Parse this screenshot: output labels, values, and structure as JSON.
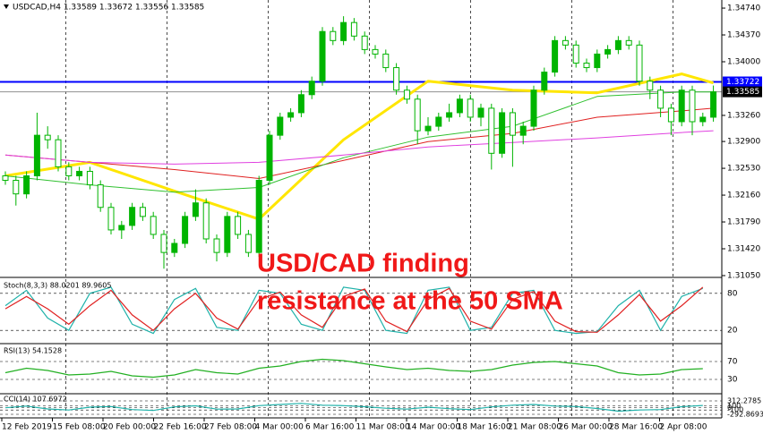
{
  "chart_data": {
    "type": "candlestick",
    "title": "USDCAD,H4 1.33589 1.33672 1.33556 1.33585",
    "annotations": [
      "USD/CAD finding",
      "resistance at the 50 SMA"
    ],
    "up_color": "#00b400",
    "down_color": "#00b400",
    "ylim": [
      1.31025,
      1.34827
    ],
    "yticks": [
      {
        "value": 1.3474,
        "label": "1.34740"
      },
      {
        "value": 1.3437,
        "label": "1.34370"
      },
      {
        "value": 1.34,
        "label": "1.34000"
      },
      {
        "value": 1.3326,
        "label": "1.33260"
      },
      {
        "value": 1.329,
        "label": "1.32900"
      },
      {
        "value": 1.3253,
        "label": "1.32530"
      },
      {
        "value": 1.3216,
        "label": "1.32160"
      },
      {
        "value": 1.3179,
        "label": "1.31790"
      },
      {
        "value": 1.3142,
        "label": "1.31420"
      },
      {
        "value": 1.3105,
        "label": "1.31050"
      }
    ],
    "xticks": [
      "12 Feb 2019",
      "15 Feb 08:00",
      "20 Feb 00:00",
      "22 Feb 16:00",
      "27 Feb 08:00",
      "4 Mar 00:00",
      "6 Mar 16:00",
      "11 Mar 08:00",
      "14 Mar 00:00",
      "18 Mar 16:00",
      "21 Mar 08:00",
      "26 Mar 00:00",
      "28 Mar 16:00",
      "2 Apr 08:00"
    ],
    "hlines": [
      {
        "value": 1.33722,
        "label": "1.33722",
        "color": "#0000ff"
      },
      {
        "value": 1.33585,
        "label": "1.33585",
        "color": "#909090"
      }
    ],
    "ohlc": [
      [
        1.32426,
        1.32488,
        1.32302,
        1.32364
      ],
      [
        1.32364,
        1.32426,
        1.32016,
        1.32177
      ],
      [
        1.32177,
        1.32488,
        1.32115,
        1.32426
      ],
      [
        1.32426,
        1.33297,
        1.32364,
        1.32986
      ],
      [
        1.32986,
        1.3311,
        1.328,
        1.32924
      ],
      [
        1.32924,
        1.32986,
        1.32488,
        1.32551
      ],
      [
        1.32551,
        1.32613,
        1.32364,
        1.32426
      ],
      [
        1.32426,
        1.32551,
        1.32364,
        1.32488
      ],
      [
        1.32488,
        1.32551,
        1.3224,
        1.32302
      ],
      [
        1.32302,
        1.32364,
        1.31929,
        1.31991
      ],
      [
        1.31991,
        1.32053,
        1.31618,
        1.3168
      ],
      [
        1.3168,
        1.31804,
        1.31556,
        1.31742
      ],
      [
        1.31742,
        1.32053,
        1.3168,
        1.31991
      ],
      [
        1.31991,
        1.32053,
        1.31804,
        1.31866
      ],
      [
        1.31866,
        1.31929,
        1.31556,
        1.31618
      ],
      [
        1.31618,
        1.3168,
        1.31145,
        1.31369
      ],
      [
        1.31369,
        1.31556,
        1.31307,
        1.31494
      ],
      [
        1.31494,
        1.31929,
        1.31431,
        1.31866
      ],
      [
        1.31866,
        1.3224,
        1.31804,
        1.32053
      ],
      [
        1.32053,
        1.32115,
        1.31494,
        1.31556
      ],
      [
        1.31556,
        1.31618,
        1.31245,
        1.31369
      ],
      [
        1.31369,
        1.31929,
        1.31307,
        1.31866
      ],
      [
        1.31866,
        1.31929,
        1.31556,
        1.31618
      ],
      [
        1.31618,
        1.3168,
        1.31307,
        1.31369
      ],
      [
        1.31369,
        1.32426,
        1.31307,
        1.32364
      ],
      [
        1.32364,
        1.33048,
        1.32302,
        1.32986
      ],
      [
        1.32986,
        1.33297,
        1.32924,
        1.33235
      ],
      [
        1.33235,
        1.33359,
        1.33173,
        1.33297
      ],
      [
        1.33297,
        1.33608,
        1.33235,
        1.33546
      ],
      [
        1.33546,
        1.33795,
        1.33484,
        1.33732
      ],
      [
        1.33732,
        1.34479,
        1.3367,
        1.34417
      ],
      [
        1.34417,
        1.34479,
        1.3423,
        1.34292
      ],
      [
        1.34292,
        1.34628,
        1.3423,
        1.34541
      ],
      [
        1.34541,
        1.34603,
        1.34292,
        1.34354
      ],
      [
        1.34354,
        1.34417,
        1.34106,
        1.34168
      ],
      [
        1.34168,
        1.3423,
        1.34043,
        1.34106
      ],
      [
        1.34106,
        1.34168,
        1.33857,
        1.33919
      ],
      [
        1.33919,
        1.33981,
        1.33546,
        1.33608
      ],
      [
        1.33608,
        1.3367,
        1.33421,
        1.33484
      ],
      [
        1.33484,
        1.33546,
        1.32862,
        1.33048
      ],
      [
        1.33048,
        1.33235,
        1.32986,
        1.3311
      ],
      [
        1.3311,
        1.33297,
        1.33048,
        1.33235
      ],
      [
        1.33235,
        1.33421,
        1.33173,
        1.33297
      ],
      [
        1.33297,
        1.33546,
        1.33235,
        1.33484
      ],
      [
        1.33484,
        1.33546,
        1.33173,
        1.33235
      ],
      [
        1.33235,
        1.33421,
        1.3311,
        1.33359
      ],
      [
        1.33359,
        1.33421,
        1.32513,
        1.32737
      ],
      [
        1.32737,
        1.33359,
        1.32675,
        1.33297
      ],
      [
        1.33297,
        1.33359,
        1.32551,
        1.32986
      ],
      [
        1.32986,
        1.33173,
        1.32862,
        1.3311
      ],
      [
        1.3311,
        1.3367,
        1.33048,
        1.33608
      ],
      [
        1.33608,
        1.33919,
        1.33546,
        1.33857
      ],
      [
        1.33857,
        1.34354,
        1.33795,
        1.34292
      ],
      [
        1.34292,
        1.34354,
        1.34168,
        1.3423
      ],
      [
        1.3423,
        1.34292,
        1.33919,
        1.33981
      ],
      [
        1.33981,
        1.34043,
        1.33857,
        1.33919
      ],
      [
        1.33919,
        1.34168,
        1.33857,
        1.34106
      ],
      [
        1.34106,
        1.3423,
        1.34043,
        1.34168
      ],
      [
        1.34168,
        1.34354,
        1.34106,
        1.34292
      ],
      [
        1.34292,
        1.34354,
        1.34168,
        1.3423
      ],
      [
        1.3423,
        1.34292,
        1.3367,
        1.33732
      ],
      [
        1.33732,
        1.33795,
        1.33484,
        1.33608
      ],
      [
        1.33608,
        1.3367,
        1.33235,
        1.33359
      ],
      [
        1.33359,
        1.33421,
        1.32986,
        1.33173
      ],
      [
        1.33173,
        1.3367,
        1.3311,
        1.33608
      ],
      [
        1.33608,
        1.3367,
        1.32986,
        1.33173
      ],
      [
        1.33173,
        1.33297,
        1.3311,
        1.33235
      ],
      [
        1.33235,
        1.33672,
        1.33173,
        1.33585
      ]
    ],
    "series": [
      {
        "color": "#ffe600",
        "width": 3,
        "x": [
          0,
          8,
          16,
          24,
          32,
          40,
          48,
          56,
          64,
          67
        ],
        "values": [
          1.32426,
          1.32613,
          1.32215,
          1.31829,
          1.32924,
          1.33732,
          1.33608,
          1.33571,
          1.33832,
          1.33708
        ]
      },
      {
        "color": "#e02020",
        "width": 1,
        "x": [
          0,
          8,
          16,
          24,
          32,
          40,
          48,
          56,
          64,
          67
        ],
        "values": [
          1.32712,
          1.32613,
          1.32513,
          1.32389,
          1.32638,
          1.32899,
          1.33011,
          1.33235,
          1.33322,
          1.33359
        ]
      },
      {
        "color": "#30c030",
        "width": 1,
        "x": [
          0,
          8,
          16,
          24,
          32,
          40,
          48,
          56,
          64,
          67
        ],
        "values": [
          1.32426,
          1.32302,
          1.32202,
          1.32265,
          1.32675,
          1.32961,
          1.3311,
          1.33521,
          1.33583,
          1.33583
        ]
      },
      {
        "color": "#e040e0",
        "width": 1,
        "x": [
          0,
          8,
          16,
          24,
          32,
          40,
          48,
          56,
          64,
          67
        ],
        "values": [
          1.32712,
          1.32613,
          1.32588,
          1.32613,
          1.32712,
          1.32825,
          1.32887,
          1.32949,
          1.33023,
          1.33048
        ]
      }
    ],
    "indicators": [
      {
        "title": "Stoch(8,3,3) 88.0201 89.9605",
        "ylim": [
          0,
          100
        ],
        "yticks": [
          80,
          20
        ],
        "series": [
          {
            "color": "#20b2aa",
            "values": [
              60,
              85,
              40,
              20,
              80,
              90,
              30,
              15,
              70,
              88,
              25,
              20,
              85,
              80,
              30,
              20,
              90,
              85,
              20,
              15,
              85,
              90,
              20,
              25,
              80,
              85,
              20,
              15,
              18,
              60,
              85,
              20,
              75,
              88
            ]
          },
          {
            "color": "#e02020",
            "values": [
              55,
              75,
              55,
              30,
              60,
              85,
              45,
              20,
              55,
              80,
              40,
              22,
              70,
              82,
              45,
              25,
              75,
              87,
              35,
              18,
              70,
              88,
              35,
              22,
              70,
              83,
              35,
              18,
              17,
              45,
              78,
              35,
              60,
              90
            ]
          }
        ]
      },
      {
        "title": "RSI(13) 54.1528",
        "ylim": [
          0,
          100
        ],
        "yticks": [
          70,
          30
        ],
        "series": [
          {
            "color": "#22b022",
            "values": [
              45,
              55,
              50,
              40,
              42,
              48,
              38,
              35,
              40,
              52,
              45,
              42,
              55,
              60,
              70,
              75,
              72,
              65,
              58,
              52,
              55,
              50,
              48,
              52,
              62,
              68,
              70,
              65,
              60,
              45,
              40,
              42,
              52,
              54
            ]
          }
        ]
      },
      {
        "title": "CCI(14) 107.6972",
        "ylim": [
          -292.8693,
          312.2785
        ],
        "yticks": [
          312.2785,
          100,
          0,
          -100,
          -292.8693
        ],
        "series": [
          {
            "color": "#20b2aa",
            "values": [
              0,
              80,
              -50,
              -100,
              30,
              60,
              -80,
              -120,
              40,
              90,
              -60,
              -50,
              100,
              150,
              200,
              120,
              100,
              50,
              -20,
              -60,
              30,
              -40,
              -80,
              40,
              120,
              150,
              80,
              60,
              -30,
              -150,
              -100,
              -80,
              50,
              107
            ]
          }
        ]
      }
    ]
  }
}
